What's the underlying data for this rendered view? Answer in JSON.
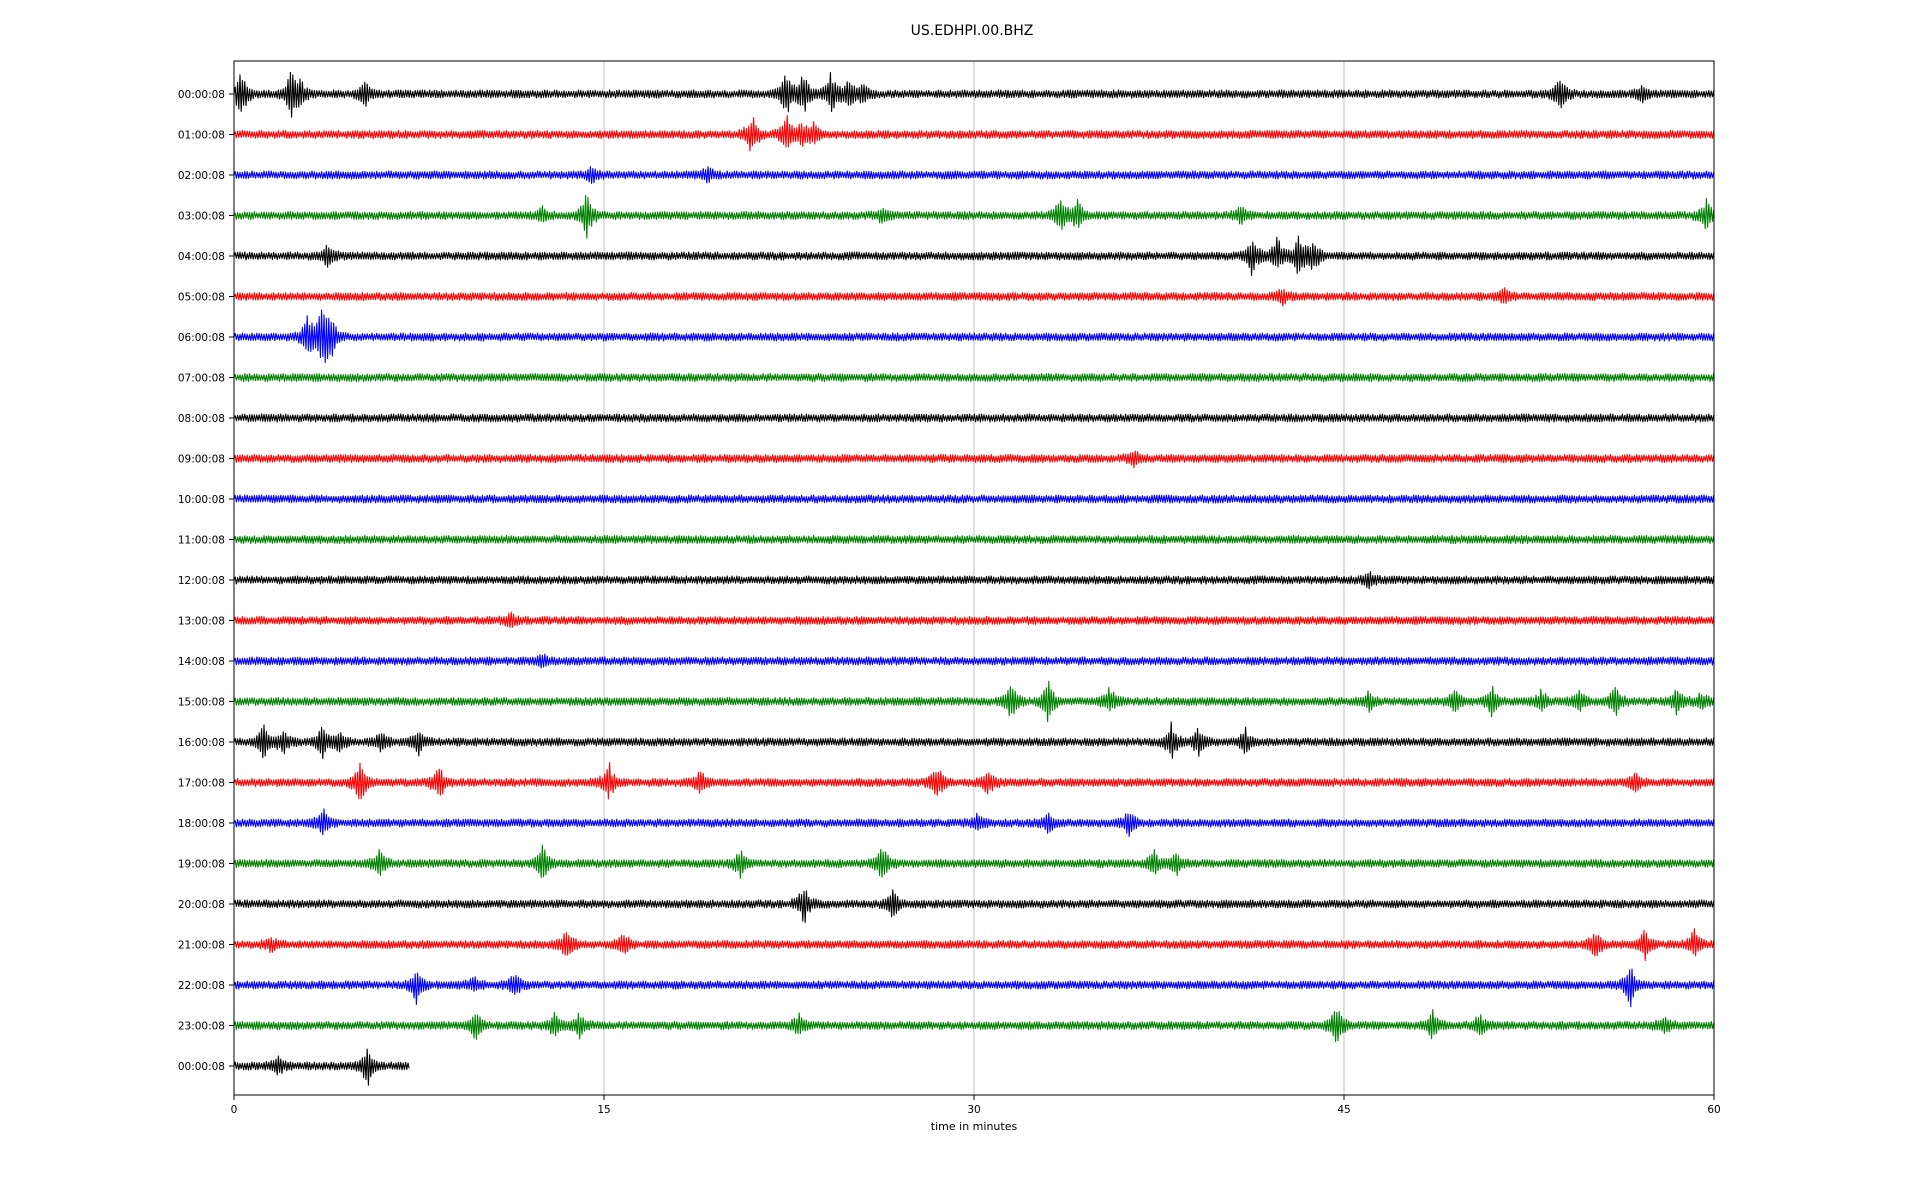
{
  "chart_data": {
    "type": "line",
    "title": "US.EDHPI.00.BHZ",
    "xlabel": "time in minutes",
    "ylabel": "",
    "xlim": [
      0,
      60
    ],
    "xticks": [
      0,
      15,
      30,
      45,
      60
    ],
    "grid": "vertical",
    "colors": [
      "#000000",
      "#ff0000",
      "#0000ff",
      "#008000"
    ],
    "rows": [
      {
        "label": "00:00:08",
        "color": "#000000",
        "end": 60,
        "events": [
          [
            0.3,
            1.0
          ],
          [
            2.3,
            1.0
          ],
          [
            2.7,
            0.5
          ],
          [
            5.3,
            0.6
          ],
          [
            22.4,
            1.0
          ],
          [
            23.1,
            0.9
          ],
          [
            24.2,
            0.9
          ],
          [
            24.9,
            0.6
          ],
          [
            25.5,
            0.5
          ],
          [
            53.8,
            0.8
          ],
          [
            57.1,
            0.3
          ]
        ]
      },
      {
        "label": "01:00:08",
        "color": "#ff0000",
        "end": 60,
        "events": [
          [
            21.0,
            0.9
          ],
          [
            22.4,
            0.8
          ],
          [
            23.0,
            0.6
          ],
          [
            23.5,
            0.4
          ]
        ]
      },
      {
        "label": "02:00:08",
        "color": "#0000ff",
        "end": 60,
        "events": [
          [
            14.5,
            0.3
          ],
          [
            19.2,
            0.3
          ]
        ]
      },
      {
        "label": "03:00:08",
        "color": "#008000",
        "end": 60,
        "events": [
          [
            14.3,
            1.0
          ],
          [
            12.5,
            0.3
          ],
          [
            26.3,
            0.3
          ],
          [
            33.5,
            0.7
          ],
          [
            34.2,
            0.6
          ],
          [
            40.8,
            0.4
          ],
          [
            59.7,
            0.8
          ]
        ]
      },
      {
        "label": "04:00:08",
        "color": "#000000",
        "end": 60,
        "events": [
          [
            3.8,
            0.5
          ],
          [
            41.3,
            0.9
          ],
          [
            42.3,
            0.8
          ],
          [
            43.2,
            1.0
          ],
          [
            43.8,
            0.7
          ]
        ]
      },
      {
        "label": "05:00:08",
        "color": "#ff0000",
        "end": 60,
        "events": [
          [
            42.5,
            0.3
          ],
          [
            51.5,
            0.3
          ]
        ]
      },
      {
        "label": "06:00:08",
        "color": "#0000ff",
        "end": 60,
        "events": [
          [
            3.0,
            1.0
          ],
          [
            3.5,
            0.7
          ],
          [
            3.7,
            1.0
          ],
          [
            4.0,
            0.6
          ]
        ]
      },
      {
        "label": "07:00:08",
        "color": "#008000",
        "end": 60,
        "events": []
      },
      {
        "label": "08:00:08",
        "color": "#000000",
        "end": 60,
        "events": []
      },
      {
        "label": "09:00:08",
        "color": "#ff0000",
        "end": 60,
        "events": [
          [
            36.5,
            0.3
          ]
        ]
      },
      {
        "label": "10:00:08",
        "color": "#0000ff",
        "end": 60,
        "events": []
      },
      {
        "label": "11:00:08",
        "color": "#008000",
        "end": 60,
        "events": []
      },
      {
        "label": "12:00:08",
        "color": "#000000",
        "end": 60,
        "events": [
          [
            46.0,
            0.3
          ]
        ]
      },
      {
        "label": "13:00:08",
        "color": "#ff0000",
        "end": 60,
        "events": [
          [
            11.2,
            0.3
          ]
        ]
      },
      {
        "label": "14:00:08",
        "color": "#0000ff",
        "end": 60,
        "events": [
          [
            12.5,
            0.3
          ]
        ]
      },
      {
        "label": "15:00:08",
        "color": "#008000",
        "end": 60,
        "events": [
          [
            31.5,
            1.0
          ],
          [
            33.0,
            0.9
          ],
          [
            35.5,
            0.6
          ],
          [
            46.0,
            0.4
          ],
          [
            49.5,
            0.5
          ],
          [
            51.0,
            0.6
          ],
          [
            53.0,
            0.5
          ],
          [
            54.5,
            0.5
          ],
          [
            56.0,
            0.6
          ],
          [
            58.5,
            0.5
          ],
          [
            59.5,
            0.4
          ]
        ]
      },
      {
        "label": "16:00:08",
        "color": "#000000",
        "end": 60,
        "events": [
          [
            1.2,
            0.7
          ],
          [
            2.0,
            0.5
          ],
          [
            3.6,
            0.7
          ],
          [
            4.3,
            0.5
          ],
          [
            6.0,
            0.5
          ],
          [
            7.5,
            0.5
          ],
          [
            38.0,
            0.8
          ],
          [
            39.1,
            0.6
          ],
          [
            41.0,
            0.5
          ]
        ]
      },
      {
        "label": "17:00:08",
        "color": "#ff0000",
        "end": 60,
        "events": [
          [
            5.1,
            0.9
          ],
          [
            8.3,
            0.8
          ],
          [
            15.2,
            0.8
          ],
          [
            18.9,
            0.5
          ],
          [
            28.5,
            0.8
          ],
          [
            30.6,
            0.6
          ],
          [
            56.8,
            0.4
          ]
        ]
      },
      {
        "label": "18:00:08",
        "color": "#0000ff",
        "end": 60,
        "events": [
          [
            3.6,
            0.6
          ],
          [
            30.1,
            0.3
          ],
          [
            33.0,
            0.4
          ],
          [
            36.3,
            0.6
          ]
        ]
      },
      {
        "label": "19:00:08",
        "color": "#008000",
        "end": 60,
        "events": [
          [
            5.9,
            0.6
          ],
          [
            12.5,
            0.8
          ],
          [
            20.5,
            0.6
          ],
          [
            26.3,
            0.8
          ],
          [
            37.3,
            0.5
          ],
          [
            38.2,
            0.5
          ]
        ]
      },
      {
        "label": "20:00:08",
        "color": "#000000",
        "end": 60,
        "events": [
          [
            23.1,
            0.9
          ],
          [
            26.7,
            0.7
          ]
        ]
      },
      {
        "label": "21:00:08",
        "color": "#ff0000",
        "end": 60,
        "events": [
          [
            1.5,
            0.3
          ],
          [
            13.5,
            0.7
          ],
          [
            15.8,
            0.5
          ],
          [
            55.2,
            0.6
          ],
          [
            57.2,
            0.6
          ],
          [
            59.2,
            0.6
          ]
        ]
      },
      {
        "label": "22:00:08",
        "color": "#0000ff",
        "end": 60,
        "events": [
          [
            7.4,
            0.8
          ],
          [
            9.7,
            0.3
          ],
          [
            11.4,
            0.6
          ],
          [
            56.6,
            0.9
          ]
        ]
      },
      {
        "label": "23:00:08",
        "color": "#008000",
        "end": 60,
        "events": [
          [
            9.8,
            0.6
          ],
          [
            13.0,
            0.5
          ],
          [
            14.0,
            0.5
          ],
          [
            22.9,
            0.5
          ],
          [
            44.7,
            0.9
          ],
          [
            48.6,
            0.7
          ],
          [
            50.5,
            0.5
          ],
          [
            58.0,
            0.4
          ]
        ]
      },
      {
        "label": "00:00:08",
        "color": "#000000",
        "end": 7.1,
        "events": [
          [
            1.8,
            0.4
          ],
          [
            5.4,
            0.9
          ]
        ]
      }
    ]
  }
}
